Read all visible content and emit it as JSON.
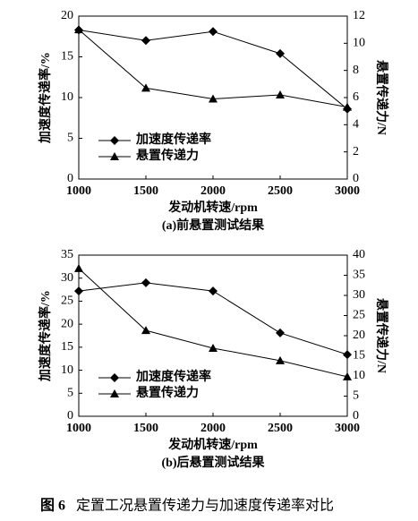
{
  "chart_data": [
    {
      "type": "line",
      "caption": "(a)前悬置测试结果",
      "x_label": "发动机转速/rpm",
      "y_label": "加速度传递率/%",
      "y2_label": "悬置传递力/N",
      "x": [
        1000,
        1500,
        2000,
        2500,
        3000
      ],
      "xlim": [
        1000,
        3000
      ],
      "xticks": [
        1000,
        1500,
        2000,
        2500,
        3000
      ],
      "ylim": [
        0,
        20
      ],
      "yticks": [
        0,
        5,
        10,
        15,
        20
      ],
      "y2lim": [
        0,
        12
      ],
      "y2ticks": [
        0,
        2,
        4,
        6,
        8,
        10,
        12
      ],
      "legend": "lower left",
      "series": [
        {
          "name": "加速度传递率",
          "color": "#000000",
          "marker": "diamond",
          "values": [
            18.3,
            17.0,
            18.1,
            15.4,
            8.6
          ]
        },
        {
          "name": "悬置传递力",
          "color": "#000000",
          "marker": "triangle",
          "axis": "y2",
          "values": [
            11.0,
            6.7,
            5.9,
            6.2,
            5.3
          ]
        }
      ]
    },
    {
      "type": "line",
      "caption": "(b)后悬置测试结果",
      "x_label": "发动机转速/rpm",
      "y_label": "加速度传递率/%",
      "y2_label": "悬置传递力/N",
      "x": [
        1000,
        1500,
        2000,
        2500,
        3000
      ],
      "xlim": [
        1000,
        3000
      ],
      "xticks": [
        1000,
        1500,
        2000,
        2500,
        3000
      ],
      "ylim": [
        0,
        35
      ],
      "yticks": [
        0,
        5,
        10,
        15,
        20,
        25,
        30,
        35
      ],
      "y2lim": [
        0,
        40
      ],
      "y2ticks": [
        0,
        5,
        10,
        15,
        20,
        25,
        30,
        35,
        40
      ],
      "legend": "lower left",
      "series": [
        {
          "name": "加速度传递率",
          "color": "#000000",
          "marker": "diamond",
          "values": [
            27.2,
            29.0,
            27.2,
            18.1,
            13.4
          ]
        },
        {
          "name": "悬置传递力",
          "color": "#000000",
          "marker": "triangle",
          "axis": "y2",
          "values": [
            36.7,
            21.3,
            16.9,
            13.8,
            9.8
          ]
        }
      ]
    }
  ],
  "figure": {
    "label": "图 6",
    "caption": "定置工况悬置传递力与加速度传递率对比"
  }
}
